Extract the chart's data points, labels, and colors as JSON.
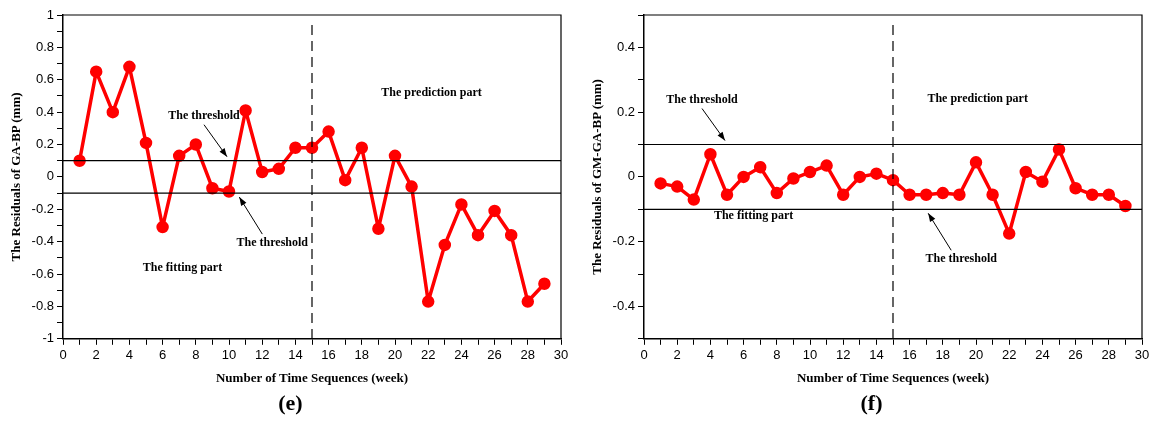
{
  "chart_data": [
    {
      "type": "line",
      "title": "(e)",
      "xlabel": "Number of Time Sequences (week)",
      "ylabel": "The Residuals of GA-BP (mm)",
      "x": [
        1,
        2,
        3,
        4,
        5,
        6,
        7,
        8,
        9,
        10,
        11,
        12,
        13,
        14,
        15,
        16,
        17,
        18,
        19,
        20,
        21,
        22,
        23,
        24,
        25,
        26,
        27,
        28,
        29
      ],
      "series": [
        {
          "color": "#ff0000",
          "values": [
            0.1,
            0.65,
            0.4,
            0.68,
            0.21,
            -0.31,
            0.13,
            0.2,
            -0.07,
            -0.09,
            0.41,
            0.03,
            0.05,
            0.18,
            0.18,
            0.28,
            -0.02,
            0.18,
            -0.32,
            0.13,
            -0.06,
            -0.77,
            -0.42,
            -0.17,
            -0.36,
            -0.21,
            -0.36,
            -0.77,
            -0.66
          ]
        }
      ],
      "xlim": [
        0,
        30
      ],
      "xticks": [
        0,
        {
          "value": 1,
          "label": null
        },
        2,
        {
          "value": 3,
          "label": null
        },
        4,
        {
          "value": 5,
          "label": null
        },
        6,
        {
          "value": 7,
          "label": null
        },
        8,
        {
          "value": 9,
          "label": null
        },
        10,
        {
          "value": 11,
          "label": null
        },
        12,
        {
          "value": 13,
          "label": null
        },
        14,
        {
          "value": 15,
          "label": null
        },
        16,
        {
          "value": 17,
          "label": null
        },
        18,
        {
          "value": 19,
          "label": null
        },
        20,
        {
          "value": 21,
          "label": null
        },
        22,
        {
          "value": 23,
          "label": null
        },
        24,
        {
          "value": 25,
          "label": null
        },
        26,
        {
          "value": 27,
          "label": null
        },
        28,
        {
          "value": 29,
          "label": null
        },
        30
      ],
      "ylim": [
        -1,
        1
      ],
      "yticks": [
        -1,
        {
          "value": -0.9,
          "label": null
        },
        -0.8,
        {
          "value": -0.7,
          "label": null
        },
        -0.6,
        {
          "value": -0.5,
          "label": null
        },
        -0.4,
        {
          "value": -0.3,
          "label": null
        },
        -0.2,
        {
          "value": -0.1,
          "label": null
        },
        0,
        {
          "value": 0.1,
          "label": null
        },
        0.2,
        {
          "value": 0.3,
          "label": null
        },
        0.4,
        {
          "value": 0.5,
          "label": null
        },
        0.6,
        {
          "value": 0.7,
          "label": null
        },
        0.8,
        {
          "value": 0.9,
          "label": null
        },
        1
      ],
      "ref_lines": [
        {
          "axis": "y",
          "value": 0.1,
          "color": "#000000"
        },
        {
          "axis": "y",
          "value": -0.1,
          "color": "#000000"
        },
        {
          "axis": "x",
          "value": 15,
          "color": "#000000",
          "line_style": "dashed"
        }
      ],
      "annotations": [
        "The prediction part",
        "The fitting part",
        {
          "text": "The threshold",
          "x": 10,
          "y": 0.1
        },
        {
          "text": "The threshold",
          "x": 10.5,
          "y": -0.1
        }
      ],
      "grid": false,
      "marker": "circle",
      "line_style": "solid"
    },
    {
      "type": "line",
      "title": "(f)",
      "xlabel": "Number of Time Sequences (week)",
      "ylabel": "The Residuals of GM-GA-BP (mm)",
      "x": [
        1,
        2,
        3,
        4,
        5,
        6,
        7,
        8,
        9,
        10,
        11,
        12,
        13,
        14,
        15,
        16,
        17,
        18,
        19,
        20,
        21,
        22,
        23,
        24,
        25,
        26,
        27,
        28,
        29
      ],
      "series": [
        {
          "color": "#ff0000",
          "values": [
            -0.02,
            -0.03,
            -0.07,
            0.07,
            -0.055,
            0,
            0.03,
            -0.05,
            -0.005,
            0.015,
            0.035,
            -0.055,
            0,
            0.01,
            -0.01,
            -0.055,
            -0.055,
            -0.05,
            -0.055,
            0.045,
            -0.055,
            -0.175,
            0.015,
            -0.015,
            0.085,
            -0.035,
            -0.055,
            -0.055,
            -0.09
          ]
        }
      ],
      "xlim": [
        0,
        30
      ],
      "xticks": [
        0,
        {
          "value": 1,
          "label": null
        },
        2,
        {
          "value": 3,
          "label": null
        },
        4,
        {
          "value": 5,
          "label": null
        },
        6,
        {
          "value": 7,
          "label": null
        },
        8,
        {
          "value": 9,
          "label": null
        },
        10,
        {
          "value": 11,
          "label": null
        },
        12,
        {
          "value": 13,
          "label": null
        },
        14,
        {
          "value": 15,
          "label": null
        },
        16,
        {
          "value": 17,
          "label": null
        },
        18,
        {
          "value": 19,
          "label": null
        },
        20,
        {
          "value": 21,
          "label": null
        },
        22,
        {
          "value": 23,
          "label": null
        },
        24,
        {
          "value": 25,
          "label": null
        },
        26,
        {
          "value": 27,
          "label": null
        },
        28,
        {
          "value": 29,
          "label": null
        },
        30
      ],
      "ylim": [
        -0.5,
        0.5
      ],
      "yticks": [
        {
          "value": -0.5,
          "label": null
        },
        -0.4,
        {
          "value": -0.3,
          "label": null
        },
        -0.2,
        {
          "value": -0.1,
          "label": null
        },
        0,
        {
          "value": 0.1,
          "label": null
        },
        0.2,
        {
          "value": 0.3,
          "label": null
        },
        0.4,
        {
          "value": 0.5,
          "label": null
        }
      ],
      "ref_lines": [
        {
          "axis": "y",
          "value": 0.1,
          "color": "#000000"
        },
        {
          "axis": "y",
          "value": -0.1,
          "color": "#000000"
        },
        {
          "axis": "x",
          "value": 15,
          "color": "#000000",
          "line_style": "dashed"
        }
      ],
      "annotations": [
        "The prediction part",
        "The fitting part",
        {
          "text": "The threshold",
          "x": 5,
          "y": 0.1
        },
        {
          "text": "The threshold",
          "x": 17,
          "y": -0.1
        }
      ],
      "grid": false,
      "marker": "circle",
      "line_style": "solid"
    }
  ]
}
